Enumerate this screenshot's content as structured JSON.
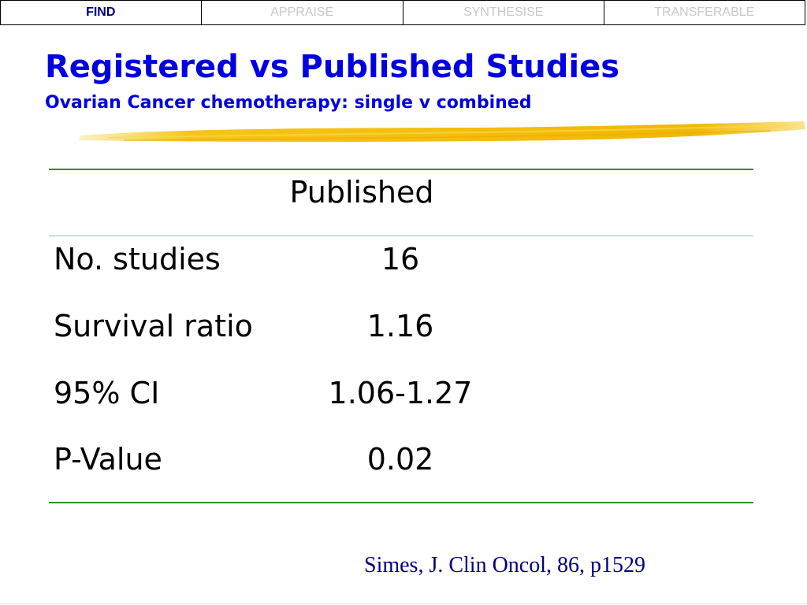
{
  "tabs": [
    {
      "label": "FIND",
      "active": true
    },
    {
      "label": "APPRAISE",
      "active": false
    },
    {
      "label": "SYNTHESISE",
      "active": false
    },
    {
      "label": "TRANSFERABLE",
      "active": false
    }
  ],
  "slide": {
    "title": "Registered vs Published Studies",
    "subtitle": "Ovarian Cancer chemotherapy:  single v combined"
  },
  "table": {
    "column_header": "Published",
    "rows": [
      {
        "label": "No. studies",
        "value": "16"
      },
      {
        "label": "Survival ratio",
        "value": "1.16"
      },
      {
        "label": "95% CI",
        "value": "1.06-1.27"
      },
      {
        "label": "P-Value",
        "value": "0.02"
      }
    ]
  },
  "citation": "Simes, J.  Clin Oncol, 86, p1529",
  "colors": {
    "title": "#0000e0",
    "citation": "#000080",
    "rule": "#2e8b2e",
    "brush": "#f5c518",
    "active_tab": "#000080",
    "inactive_tab": "#c8c8c8"
  }
}
